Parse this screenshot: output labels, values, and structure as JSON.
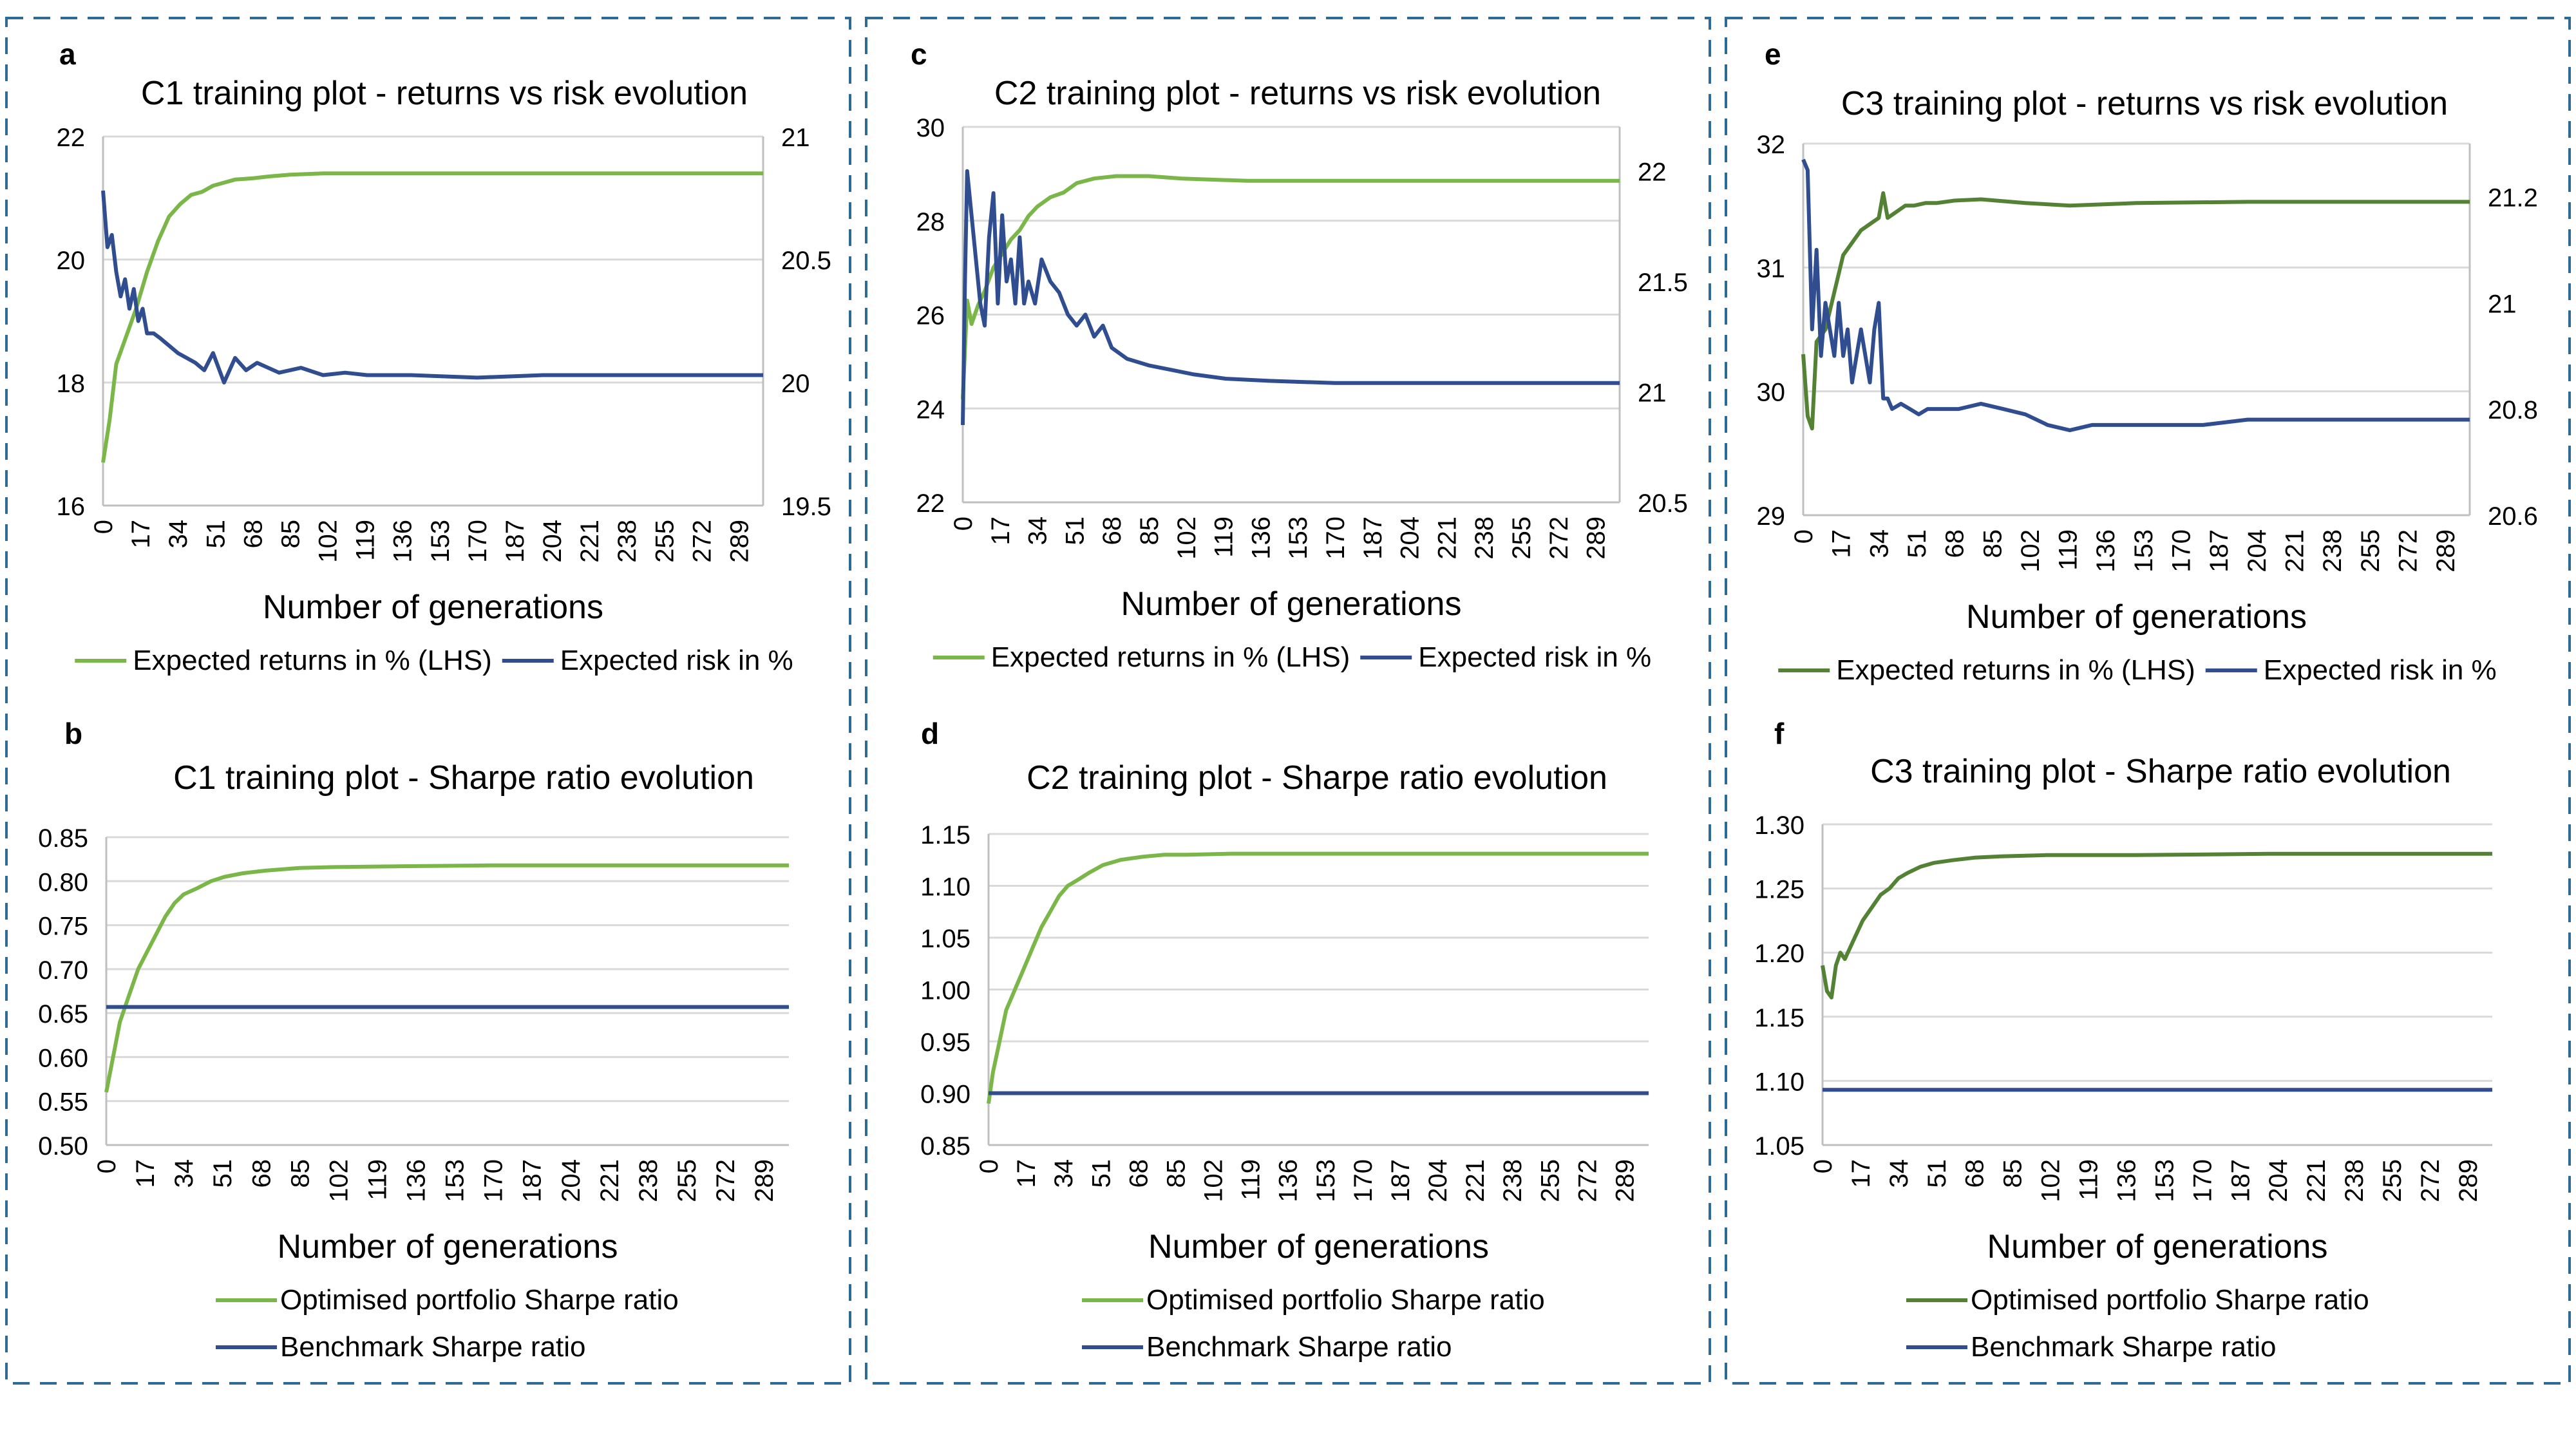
{
  "colors": {
    "returns_light": "#7ab648",
    "returns_dark": "#548235",
    "risk": "#2f4d8f",
    "benchmark": "#2f4d8f",
    "grid": "#d9d9d9",
    "border": "#2e6a96"
  },
  "panels": [
    {
      "id": "a",
      "letter": "a",
      "title": "C1 training plot - returns vs risk evolution",
      "xlabel": "Number of generations",
      "xticks": [
        "0",
        "17",
        "34",
        "51",
        "68",
        "85",
        "102",
        "119",
        "136",
        "153",
        "170",
        "187",
        "204",
        "221",
        "238",
        "255",
        "272",
        "289"
      ],
      "legend": [
        "Expected returns in % (LHS)",
        "Expected risk in %"
      ]
    },
    {
      "id": "b",
      "letter": "b",
      "title": "C1 training plot - Sharpe ratio evolution",
      "xlabel": "Number of generations",
      "xticks": [
        "0",
        "17",
        "34",
        "51",
        "68",
        "85",
        "102",
        "119",
        "136",
        "153",
        "170",
        "187",
        "204",
        "221",
        "238",
        "255",
        "272",
        "289"
      ],
      "legend": [
        "Optimised portfolio Sharpe ratio",
        "Benchmark Sharpe ratio"
      ]
    },
    {
      "id": "c",
      "letter": "c",
      "title": "C2 training plot - returns vs risk evolution",
      "xlabel": "Number of generations",
      "xticks": [
        "0",
        "17",
        "34",
        "51",
        "68",
        "85",
        "102",
        "119",
        "136",
        "153",
        "170",
        "187",
        "204",
        "221",
        "238",
        "255",
        "272",
        "289"
      ],
      "legend": [
        "Expected returns in % (LHS)",
        "Expected risk in %"
      ]
    },
    {
      "id": "d",
      "letter": "d",
      "title": "C2 training plot - Sharpe ratio evolution",
      "xlabel": "Number of generations",
      "xticks": [
        "0",
        "17",
        "34",
        "51",
        "68",
        "85",
        "102",
        "119",
        "136",
        "153",
        "170",
        "187",
        "204",
        "221",
        "238",
        "255",
        "272",
        "289"
      ],
      "legend": [
        "Optimised portfolio Sharpe ratio",
        "Benchmark Sharpe ratio"
      ]
    },
    {
      "id": "e",
      "letter": "e",
      "title": "C3 training plot - returns vs risk evolution",
      "xlabel": "Number of generations",
      "xticks": [
        "0",
        "17",
        "34",
        "51",
        "68",
        "85",
        "102",
        "119",
        "136",
        "153",
        "170",
        "187",
        "204",
        "221",
        "238",
        "255",
        "272",
        "289"
      ],
      "legend": [
        "Expected returns in % (LHS)",
        "Expected risk in %"
      ]
    },
    {
      "id": "f",
      "letter": "f",
      "title": "C3 training plot - Sharpe ratio evolution",
      "xlabel": "Number of generations",
      "xticks": [
        "0",
        "17",
        "34",
        "51",
        "68",
        "85",
        "102",
        "119",
        "136",
        "153",
        "170",
        "187",
        "204",
        "221",
        "238",
        "255",
        "272",
        "289"
      ],
      "legend": [
        "Optimised portfolio Sharpe ratio",
        "Benchmark Sharpe ratio"
      ]
    }
  ],
  "chart_data": [
    {
      "panel": "a",
      "type": "line",
      "title": "C1 training plot - returns vs risk evolution",
      "xlabel": "Number of generations",
      "xlim": [
        0,
        300
      ],
      "ylim": [
        16,
        22
      ],
      "yticks": [
        "16",
        "18",
        "20",
        "22"
      ],
      "y2lim": [
        19.5,
        21
      ],
      "y2ticks": [
        "19.5",
        "20",
        "20.5",
        "21"
      ],
      "series": [
        {
          "name": "Expected returns in % (LHS)",
          "axis": "left",
          "color_key": "returns_light",
          "x": [
            0,
            3,
            6,
            10,
            15,
            20,
            25,
            30,
            35,
            40,
            45,
            50,
            55,
            60,
            68,
            75,
            85,
            100,
            120,
            150,
            200,
            250,
            300
          ],
          "y": [
            16.7,
            17.4,
            18.3,
            18.7,
            19.2,
            19.8,
            20.3,
            20.7,
            20.9,
            21.05,
            21.1,
            21.2,
            21.25,
            21.3,
            21.32,
            21.35,
            21.38,
            21.4,
            21.4,
            21.4,
            21.4,
            21.4,
            21.4
          ]
        },
        {
          "name": "Expected risk in %",
          "axis": "right",
          "color_key": "risk",
          "x": [
            0,
            2,
            4,
            6,
            8,
            10,
            12,
            14,
            16,
            18,
            20,
            23,
            26,
            30,
            34,
            38,
            42,
            46,
            50,
            55,
            60,
            65,
            70,
            80,
            90,
            100,
            110,
            120,
            140,
            170,
            200,
            240,
            270,
            300
          ],
          "y": [
            20.78,
            20.55,
            20.6,
            20.45,
            20.35,
            20.42,
            20.3,
            20.38,
            20.25,
            20.3,
            20.2,
            20.2,
            20.18,
            20.15,
            20.12,
            20.1,
            20.08,
            20.05,
            20.12,
            20.0,
            20.1,
            20.05,
            20.08,
            20.04,
            20.06,
            20.03,
            20.04,
            20.03,
            20.03,
            20.02,
            20.03,
            20.03,
            20.03,
            20.03
          ]
        }
      ]
    },
    {
      "panel": "b",
      "type": "line",
      "title": "C1 training plot - Sharpe ratio evolution",
      "xlabel": "Number of generations",
      "xlim": [
        0,
        300
      ],
      "ylim": [
        0.5,
        0.85
      ],
      "yticks": [
        "0.50",
        "0.55",
        "0.60",
        "0.65",
        "0.70",
        "0.75",
        "0.80",
        "0.85"
      ],
      "series": [
        {
          "name": "Optimised portfolio Sharpe ratio",
          "color_key": "returns_light",
          "x": [
            0,
            3,
            6,
            10,
            14,
            18,
            22,
            26,
            30,
            34,
            40,
            46,
            52,
            60,
            70,
            85,
            100,
            130,
            170,
            220,
            300
          ],
          "y": [
            0.56,
            0.6,
            0.64,
            0.67,
            0.7,
            0.72,
            0.74,
            0.76,
            0.775,
            0.785,
            0.792,
            0.8,
            0.805,
            0.809,
            0.812,
            0.815,
            0.816,
            0.817,
            0.818,
            0.818,
            0.818
          ]
        },
        {
          "name": "Benchmark Sharpe ratio",
          "color_key": "benchmark",
          "x": [
            0,
            300
          ],
          "y": [
            0.657,
            0.657
          ]
        }
      ]
    },
    {
      "panel": "c",
      "type": "line",
      "title": "C2 training plot - returns vs risk evolution",
      "xlabel": "Number of generations",
      "xlim": [
        0,
        300
      ],
      "ylim": [
        22,
        30
      ],
      "yticks": [
        "22",
        "24",
        "26",
        "28",
        "30"
      ],
      "y2lim": [
        20.5,
        22.2
      ],
      "y2ticks": [
        "20.5",
        "21",
        "21.5",
        "22"
      ],
      "series": [
        {
          "name": "Expected returns in % (LHS)",
          "axis": "left",
          "color_key": "returns_light",
          "x": [
            0,
            2,
            4,
            7,
            10,
            14,
            18,
            22,
            26,
            30,
            34,
            40,
            46,
            52,
            60,
            70,
            85,
            100,
            130,
            170,
            220,
            300
          ],
          "y": [
            24.2,
            26.3,
            25.8,
            26.2,
            26.5,
            27.0,
            27.3,
            27.6,
            27.8,
            28.1,
            28.3,
            28.5,
            28.6,
            28.8,
            28.9,
            28.95,
            28.95,
            28.9,
            28.85,
            28.85,
            28.85,
            28.85
          ]
        },
        {
          "name": "Expected risk in %",
          "axis": "right",
          "color_key": "risk",
          "x": [
            0,
            1,
            2,
            4,
            6,
            8,
            10,
            12,
            14,
            16,
            18,
            20,
            22,
            24,
            26,
            28,
            30,
            33,
            36,
            40,
            44,
            48,
            52,
            56,
            60,
            64,
            68,
            75,
            85,
            95,
            105,
            120,
            140,
            170,
            200,
            250,
            300
          ],
          "y": [
            20.85,
            21.5,
            22.0,
            21.8,
            21.6,
            21.4,
            21.3,
            21.7,
            21.9,
            21.4,
            21.8,
            21.5,
            21.6,
            21.4,
            21.7,
            21.4,
            21.5,
            21.4,
            21.6,
            21.5,
            21.45,
            21.35,
            21.3,
            21.35,
            21.25,
            21.3,
            21.2,
            21.15,
            21.12,
            21.1,
            21.08,
            21.06,
            21.05,
            21.04,
            21.04,
            21.04,
            21.04
          ]
        }
      ]
    },
    {
      "panel": "d",
      "type": "line",
      "title": "C2 training plot - Sharpe ratio evolution",
      "xlabel": "Number of generations",
      "xlim": [
        0,
        300
      ],
      "ylim": [
        0.85,
        1.15
      ],
      "yticks": [
        "0.85",
        "0.90",
        "0.95",
        "1.00",
        "1.05",
        "1.10",
        "1.15"
      ],
      "series": [
        {
          "name": "Optimised portfolio Sharpe ratio",
          "color_key": "returns_light",
          "x": [
            0,
            2,
            4,
            8,
            12,
            16,
            20,
            24,
            28,
            32,
            36,
            40,
            46,
            52,
            60,
            70,
            80,
            90,
            110,
            140,
            200,
            300
          ],
          "y": [
            0.89,
            0.92,
            0.94,
            0.98,
            1.0,
            1.02,
            1.04,
            1.06,
            1.075,
            1.09,
            1.1,
            1.105,
            1.113,
            1.12,
            1.125,
            1.128,
            1.13,
            1.13,
            1.131,
            1.131,
            1.131,
            1.131
          ]
        },
        {
          "name": "Benchmark Sharpe ratio",
          "color_key": "benchmark",
          "x": [
            0,
            300
          ],
          "y": [
            0.9,
            0.9
          ]
        }
      ]
    },
    {
      "panel": "e",
      "type": "line",
      "title": "C3 training plot - returns vs risk evolution",
      "xlabel": "Number of generations",
      "xlim": [
        0,
        300
      ],
      "ylim": [
        29,
        32
      ],
      "yticks": [
        "29",
        "30",
        "31",
        "32"
      ],
      "y2lim": [
        20.6,
        21.3
      ],
      "y2ticks": [
        "20.6",
        "20.8",
        "21",
        "21.2"
      ],
      "series": [
        {
          "name": "Expected returns in % (LHS)",
          "axis": "left",
          "color_key": "returns_dark",
          "x": [
            0,
            2,
            4,
            6,
            10,
            14,
            18,
            22,
            26,
            30,
            34,
            36,
            38,
            42,
            46,
            50,
            55,
            60,
            68,
            80,
            100,
            120,
            150,
            200,
            300
          ],
          "y": [
            30.3,
            29.8,
            29.7,
            30.4,
            30.5,
            30.8,
            31.1,
            31.2,
            31.3,
            31.35,
            31.4,
            31.6,
            31.4,
            31.45,
            31.5,
            31.5,
            31.52,
            31.52,
            31.54,
            31.55,
            31.52,
            31.5,
            31.52,
            31.53,
            31.53
          ]
        },
        {
          "name": "Expected risk in %",
          "axis": "right",
          "color_key": "risk",
          "x": [
            0,
            2,
            4,
            6,
            8,
            10,
            12,
            14,
            16,
            18,
            20,
            22,
            24,
            26,
            28,
            30,
            32,
            34,
            36,
            38,
            40,
            44,
            48,
            52,
            56,
            60,
            70,
            80,
            90,
            100,
            110,
            120,
            130,
            150,
            180,
            200,
            240,
            300
          ],
          "y": [
            21.27,
            21.25,
            20.95,
            21.1,
            20.9,
            21.0,
            20.95,
            20.9,
            21.0,
            20.9,
            20.95,
            20.85,
            20.9,
            20.95,
            20.9,
            20.85,
            20.95,
            21.0,
            20.82,
            20.82,
            20.8,
            20.81,
            20.8,
            20.79,
            20.8,
            20.8,
            20.8,
            20.81,
            20.8,
            20.79,
            20.77,
            20.76,
            20.77,
            20.77,
            20.77,
            20.78,
            20.78,
            20.78
          ]
        }
      ]
    },
    {
      "panel": "f",
      "type": "line",
      "title": "C3 training plot - Sharpe ratio evolution",
      "xlabel": "Number of generations",
      "xlim": [
        0,
        300
      ],
      "ylim": [
        1.05,
        1.3
      ],
      "yticks": [
        "1.05",
        "1.10",
        "1.15",
        "1.20",
        "1.25",
        "1.30"
      ],
      "series": [
        {
          "name": "Optimised portfolio Sharpe ratio",
          "color_key": "returns_dark",
          "x": [
            0,
            2,
            4,
            6,
            8,
            10,
            14,
            18,
            22,
            26,
            30,
            34,
            38,
            44,
            50,
            58,
            68,
            80,
            100,
            140,
            200,
            300
          ],
          "y": [
            1.19,
            1.17,
            1.165,
            1.19,
            1.2,
            1.195,
            1.21,
            1.225,
            1.235,
            1.245,
            1.25,
            1.258,
            1.262,
            1.267,
            1.27,
            1.272,
            1.274,
            1.275,
            1.276,
            1.276,
            1.277,
            1.277
          ]
        },
        {
          "name": "Benchmark Sharpe ratio",
          "color_key": "benchmark",
          "x": [
            0,
            300
          ],
          "y": [
            1.093,
            1.093
          ]
        }
      ]
    }
  ]
}
